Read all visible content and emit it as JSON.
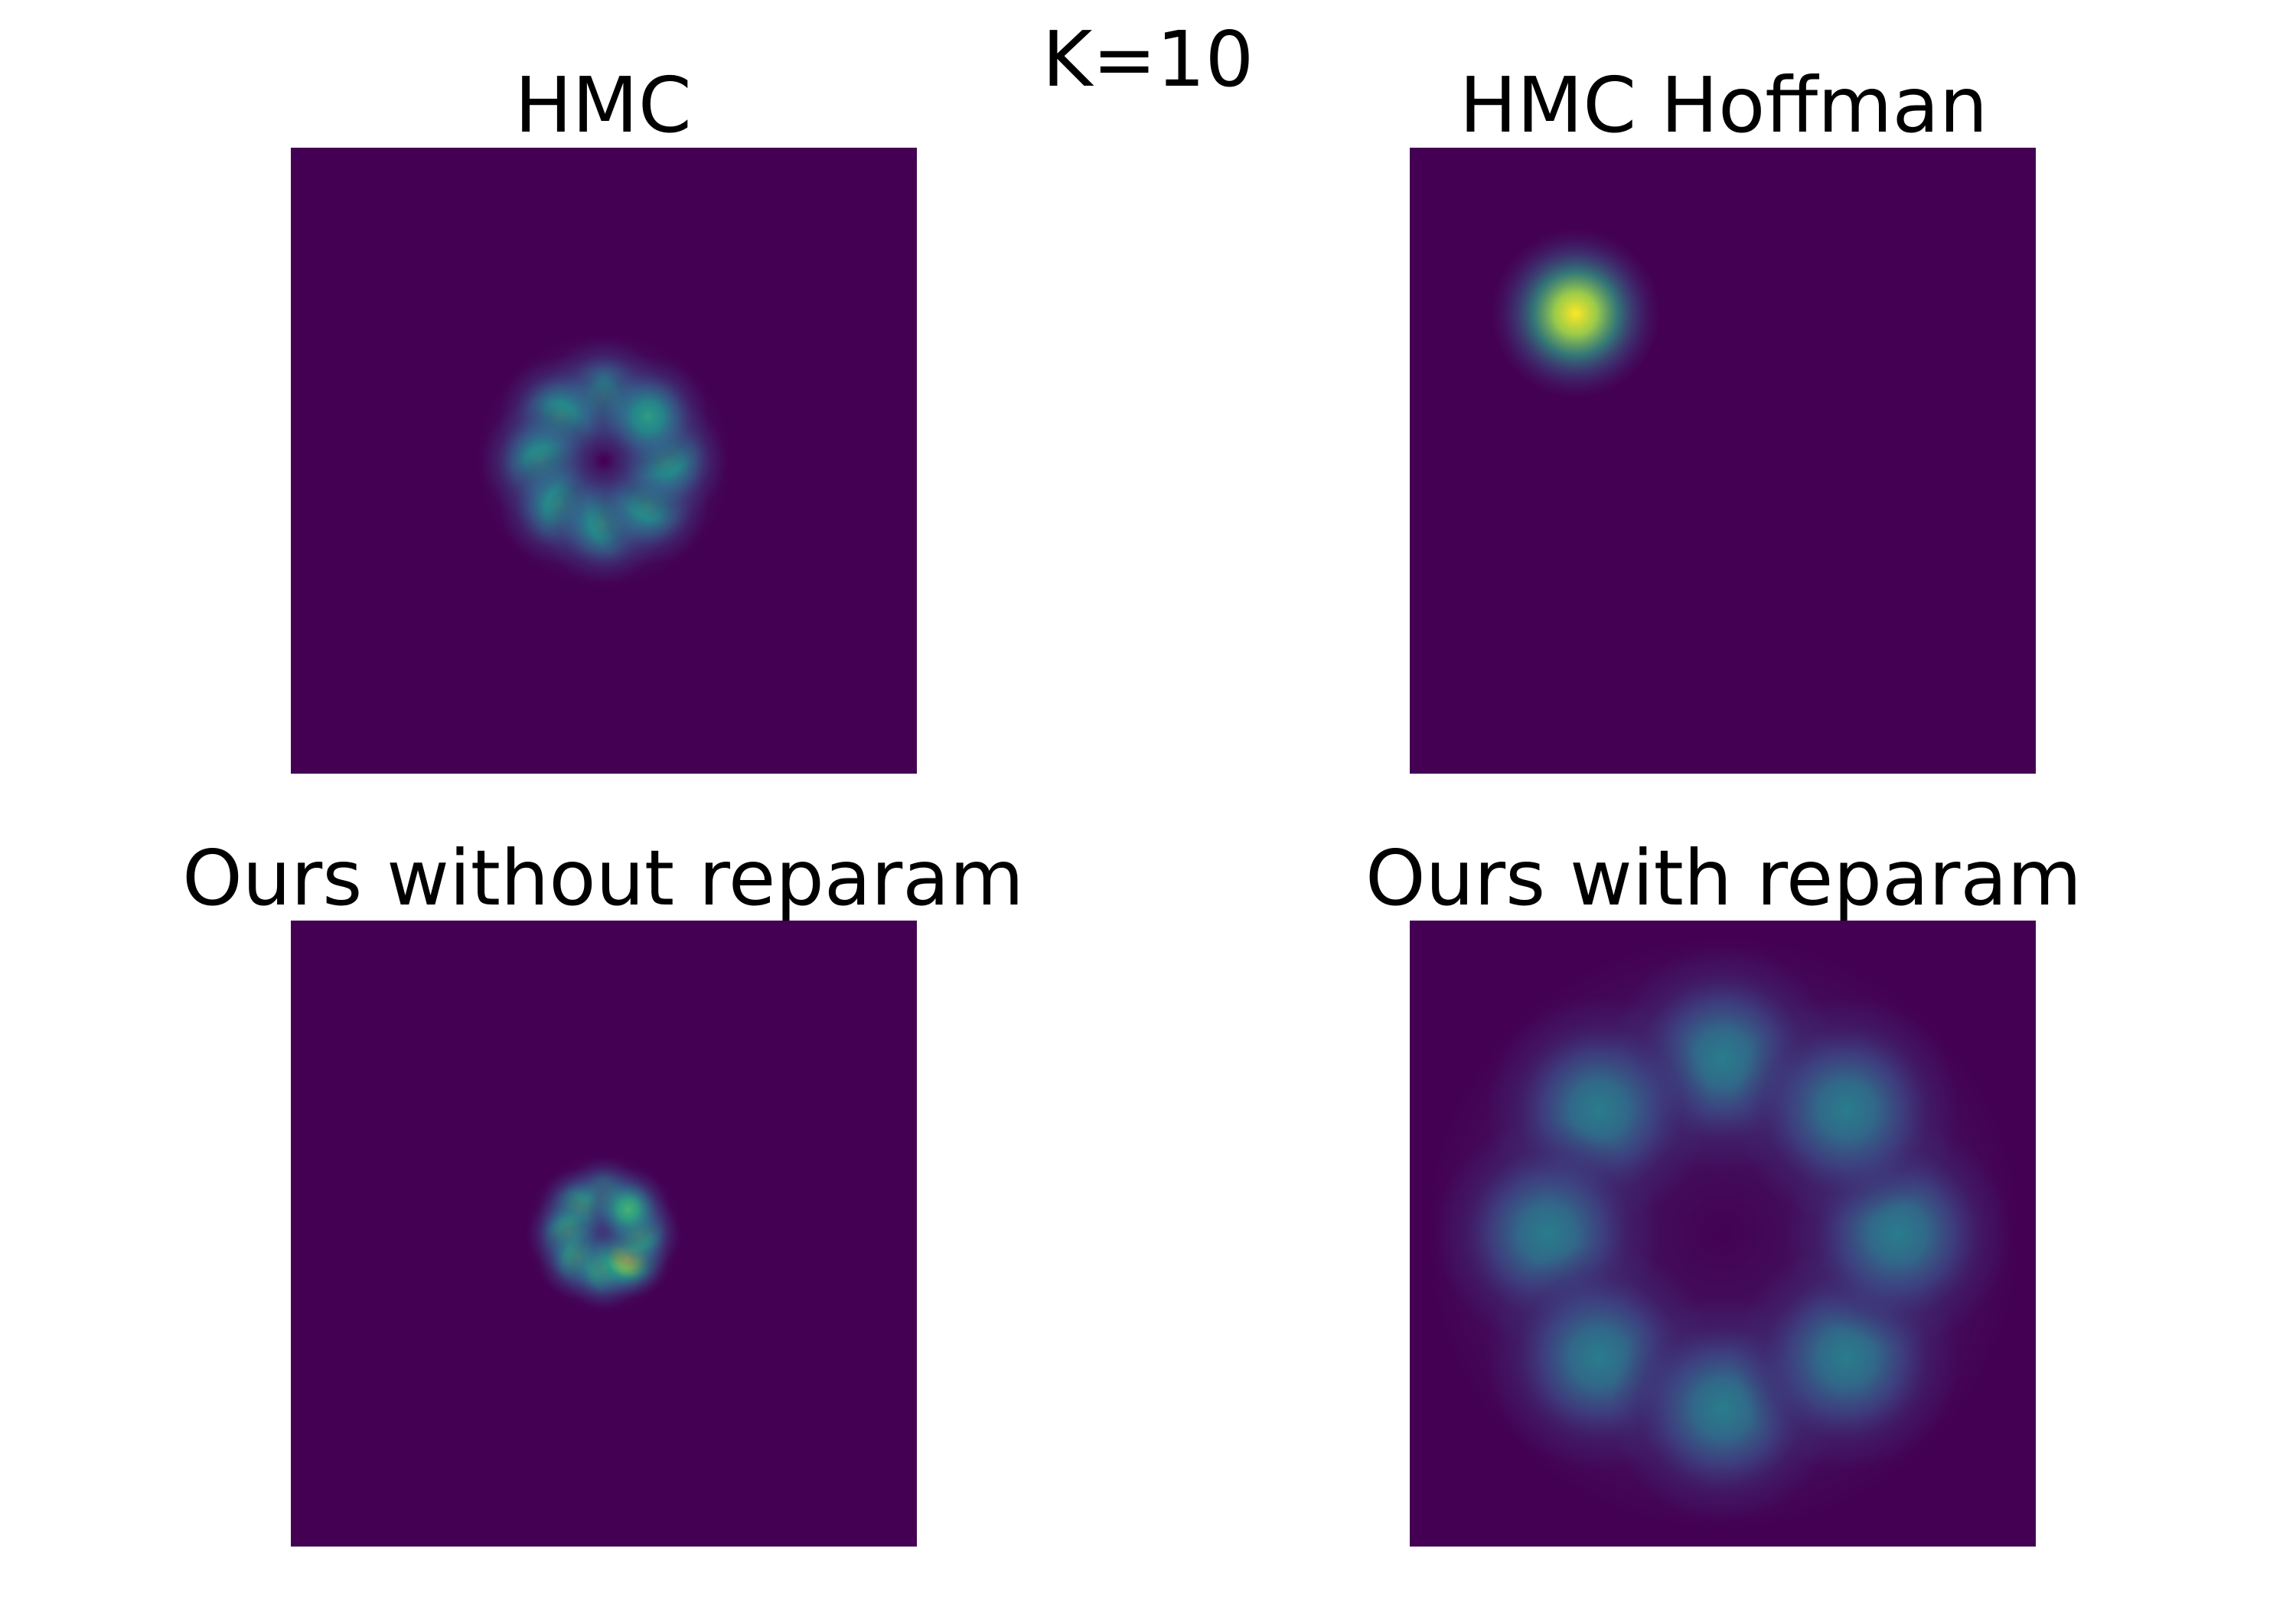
{
  "figure": {
    "suptitle": "K=10"
  },
  "chart_data": [
    {
      "type": "heatmap",
      "title": "HMC",
      "description_modes": "ring of 8 small blobs",
      "mode_count": 8,
      "ring_radius": 0.1,
      "blob_sigma": 0.032,
      "center": [
        0.5,
        0.5
      ],
      "peak_intensity": 0.55,
      "highlight_mode": null,
      "grid": false,
      "axes_visible": false
    },
    {
      "type": "heatmap",
      "title": "HMC Hoffman",
      "mode_count": 1,
      "ring_radius": 0,
      "blob_sigma": 0.045,
      "center": [
        0.265,
        0.265
      ],
      "peak_intensity": 1.0,
      "highlight_mode": null,
      "grid": false,
      "axes_visible": false
    },
    {
      "type": "heatmap",
      "title": "Ours without reparam",
      "mode_count": 8,
      "ring_radius": 0.055,
      "blob_sigma": 0.022,
      "center": [
        0.5,
        0.5
      ],
      "peak_intensity": 0.65,
      "highlight_mode": 5,
      "grid": false,
      "axes_visible": false
    },
    {
      "type": "heatmap",
      "title": "Ours with reparam",
      "mode_count": 8,
      "ring_radius": 0.28,
      "blob_sigma": 0.06,
      "center": [
        0.5,
        0.5
      ],
      "peak_intensity": 0.42,
      "highlight_mode": null,
      "grid": false,
      "axes_visible": false
    }
  ],
  "colors": {
    "background": "#ffffff",
    "colormap": [
      "#440154",
      "#3b528b",
      "#21918c",
      "#5ec962",
      "#fde725"
    ]
  }
}
